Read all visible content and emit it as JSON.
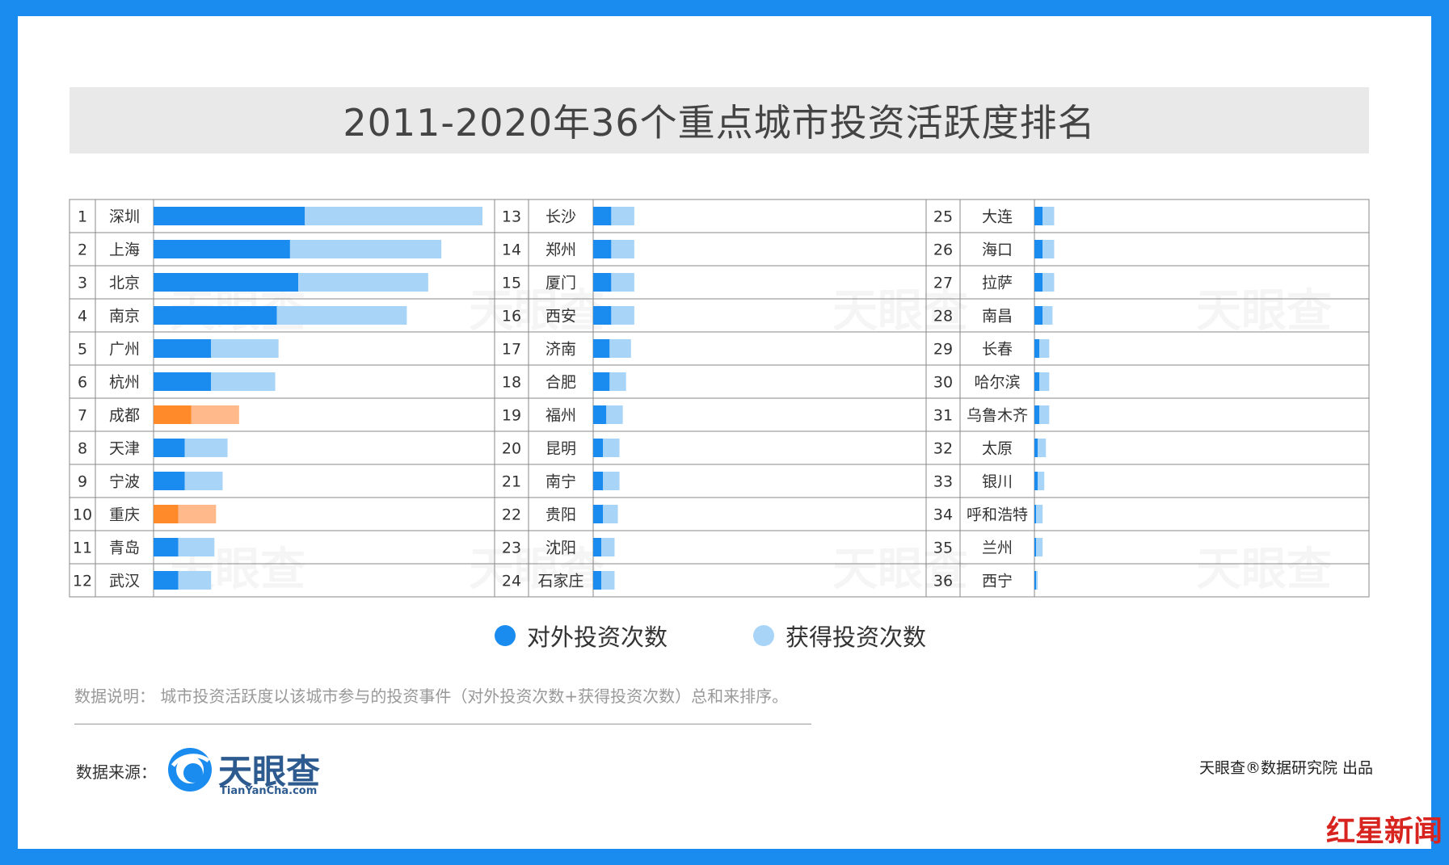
{
  "title": "2011-2020年36个重点城市投资活跃度排名",
  "legend": {
    "outbound": "对外投资次数",
    "inbound": "获得投资次数"
  },
  "colors": {
    "outbound": "#1a8cf0",
    "inbound": "#a8d4f7",
    "outbound_highlight": "#ff8a2a",
    "inbound_highlight": "#ffb98a",
    "frame": "#1a8cf0"
  },
  "note": "数据说明：  城市投资活跃度以该城市参与的投资事件（对外投资次数+获得投资次数）总和来排序。",
  "source_label": "数据来源：",
  "logo": {
    "name": "天眼查",
    "domain": "TianYanCha.com"
  },
  "publisher": "天眼查®数据研究院 出品",
  "corner_logo": "红星新闻",
  "chart_data": {
    "type": "bar",
    "orientation": "horizontal",
    "stacked": true,
    "xlim": [
      0,
      100
    ],
    "grid": false,
    "legend_position": "bottom-center",
    "series": [
      {
        "name": "对外投资次数",
        "values": [
          46,
          41.5,
          44,
          37.5,
          17.5,
          17.5,
          11.5,
          9.5,
          9.5,
          7.5,
          7.5,
          7.5,
          5.5,
          5.5,
          5.5,
          5.5,
          5,
          5,
          4,
          3,
          3,
          3,
          2.5,
          2.5,
          2.5,
          2.5,
          2.5,
          2.5,
          1.5,
          1.5,
          1.5,
          1,
          1,
          0.5,
          0.5,
          0.5
        ]
      },
      {
        "name": "获得投资次数",
        "values": [
          54,
          46,
          39.5,
          39.5,
          20.5,
          19.5,
          14.5,
          13,
          11.5,
          11.5,
          11,
          10,
          7,
          7,
          7,
          7,
          6.5,
          5,
          5,
          5,
          5,
          4.5,
          4,
          4,
          3.5,
          3.5,
          3.5,
          3,
          3,
          3,
          3,
          2.5,
          2,
          2,
          2,
          0.5
        ]
      }
    ],
    "rows": [
      {
        "rank": "1",
        "city": "深圳"
      },
      {
        "rank": "2",
        "city": "上海"
      },
      {
        "rank": "3",
        "city": "北京"
      },
      {
        "rank": "4",
        "city": "南京"
      },
      {
        "rank": "5",
        "city": "广州"
      },
      {
        "rank": "6",
        "city": "杭州"
      },
      {
        "rank": "7",
        "city": "成都",
        "highlight": true
      },
      {
        "rank": "8",
        "city": "天津"
      },
      {
        "rank": "9",
        "city": "宁波"
      },
      {
        "rank": "10",
        "city": "重庆",
        "highlight": true
      },
      {
        "rank": "11",
        "city": "青岛"
      },
      {
        "rank": "12",
        "city": "武汉"
      },
      {
        "rank": "13",
        "city": "长沙"
      },
      {
        "rank": "14",
        "city": "郑州"
      },
      {
        "rank": "15",
        "city": "厦门"
      },
      {
        "rank": "16",
        "city": "西安"
      },
      {
        "rank": "17",
        "city": "济南"
      },
      {
        "rank": "18",
        "city": "合肥"
      },
      {
        "rank": "19",
        "city": "福州"
      },
      {
        "rank": "20",
        "city": "昆明"
      },
      {
        "rank": "21",
        "city": "南宁"
      },
      {
        "rank": "22",
        "city": "贵阳"
      },
      {
        "rank": "23",
        "city": "沈阳"
      },
      {
        "rank": "24",
        "city": "石家庄"
      },
      {
        "rank": "25",
        "city": "大连"
      },
      {
        "rank": "26",
        "city": "海口"
      },
      {
        "rank": "27",
        "city": "拉萨"
      },
      {
        "rank": "28",
        "city": "南昌"
      },
      {
        "rank": "29",
        "city": "长春"
      },
      {
        "rank": "30",
        "city": "哈尔滨"
      },
      {
        "rank": "31",
        "city": "乌鲁木齐"
      },
      {
        "rank": "32",
        "city": "太原"
      },
      {
        "rank": "33",
        "city": "银川"
      },
      {
        "rank": "34",
        "city": "呼和浩特"
      },
      {
        "rank": "35",
        "city": "兰州"
      },
      {
        "rank": "36",
        "city": "西宁"
      }
    ]
  }
}
